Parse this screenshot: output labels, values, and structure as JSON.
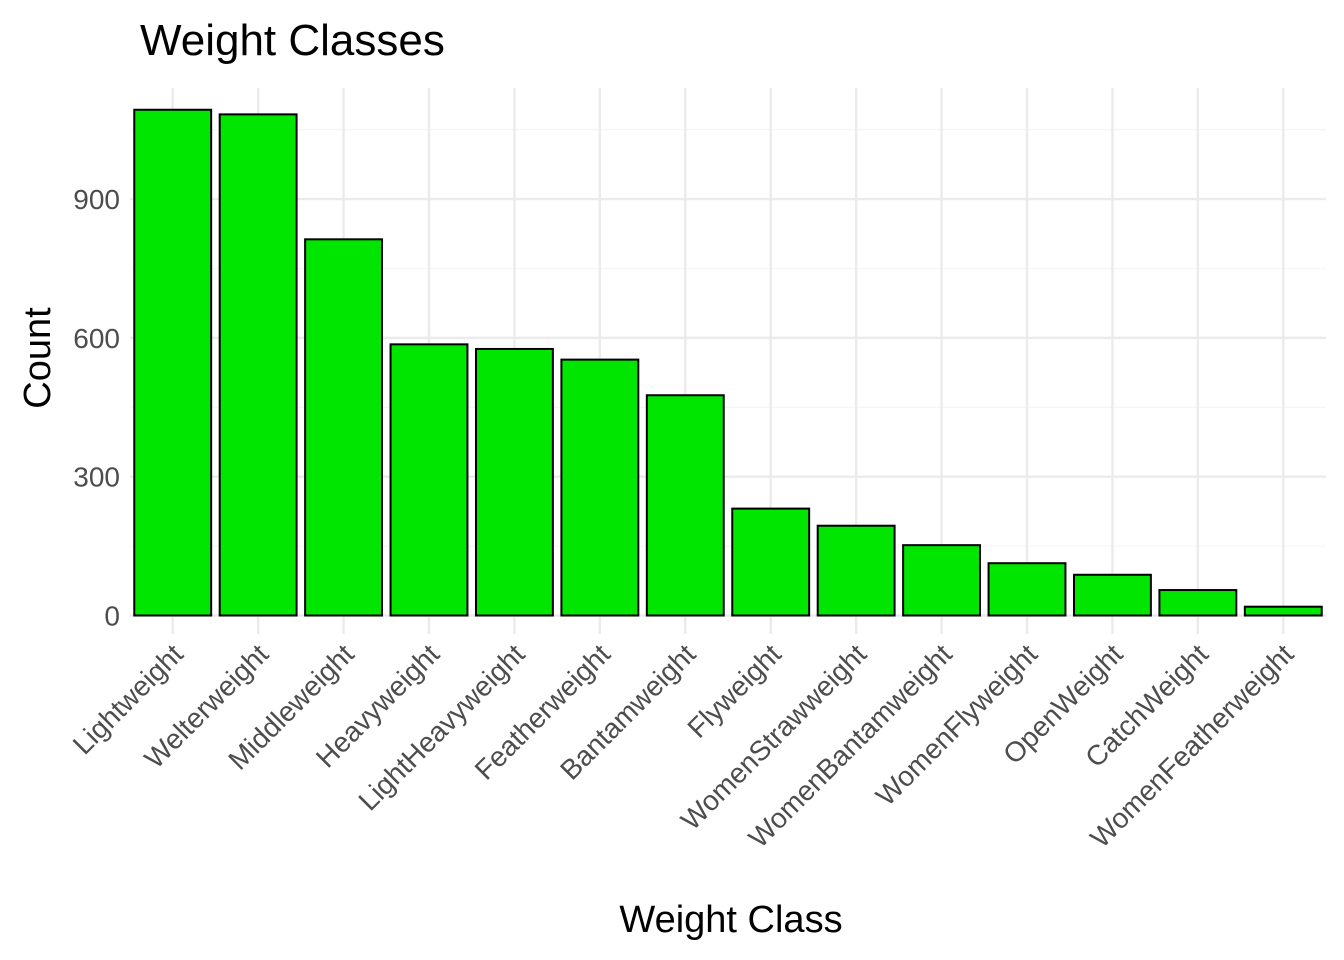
{
  "chart_data": {
    "type": "bar",
    "title": "Weight Classes",
    "xlabel": "Weight Class",
    "ylabel": "Count",
    "categories": [
      "Lightweight",
      "Welterweight",
      "Middleweight",
      "Heavyweight",
      "LightHeavyweight",
      "Featherweight",
      "Bantamweight",
      "Flyweight",
      "WomenStrawweight",
      "WomenBantamweight",
      "WomenFlyweight",
      "OpenWeight",
      "CatchWeight",
      "WomenFeatherweight"
    ],
    "values": [
      1093,
      1083,
      813,
      586,
      576,
      553,
      476,
      231,
      194,
      152,
      113,
      88,
      55,
      19
    ],
    "ylim": [
      -40,
      1140
    ],
    "yticks": [
      0,
      300,
      600,
      900
    ],
    "ytick_labels": [
      "0",
      "300",
      "600",
      "900"
    ],
    "grid": true,
    "legend": false,
    "colors": {
      "bar_fill": "#00e600",
      "bar_outline": "#000000"
    }
  }
}
